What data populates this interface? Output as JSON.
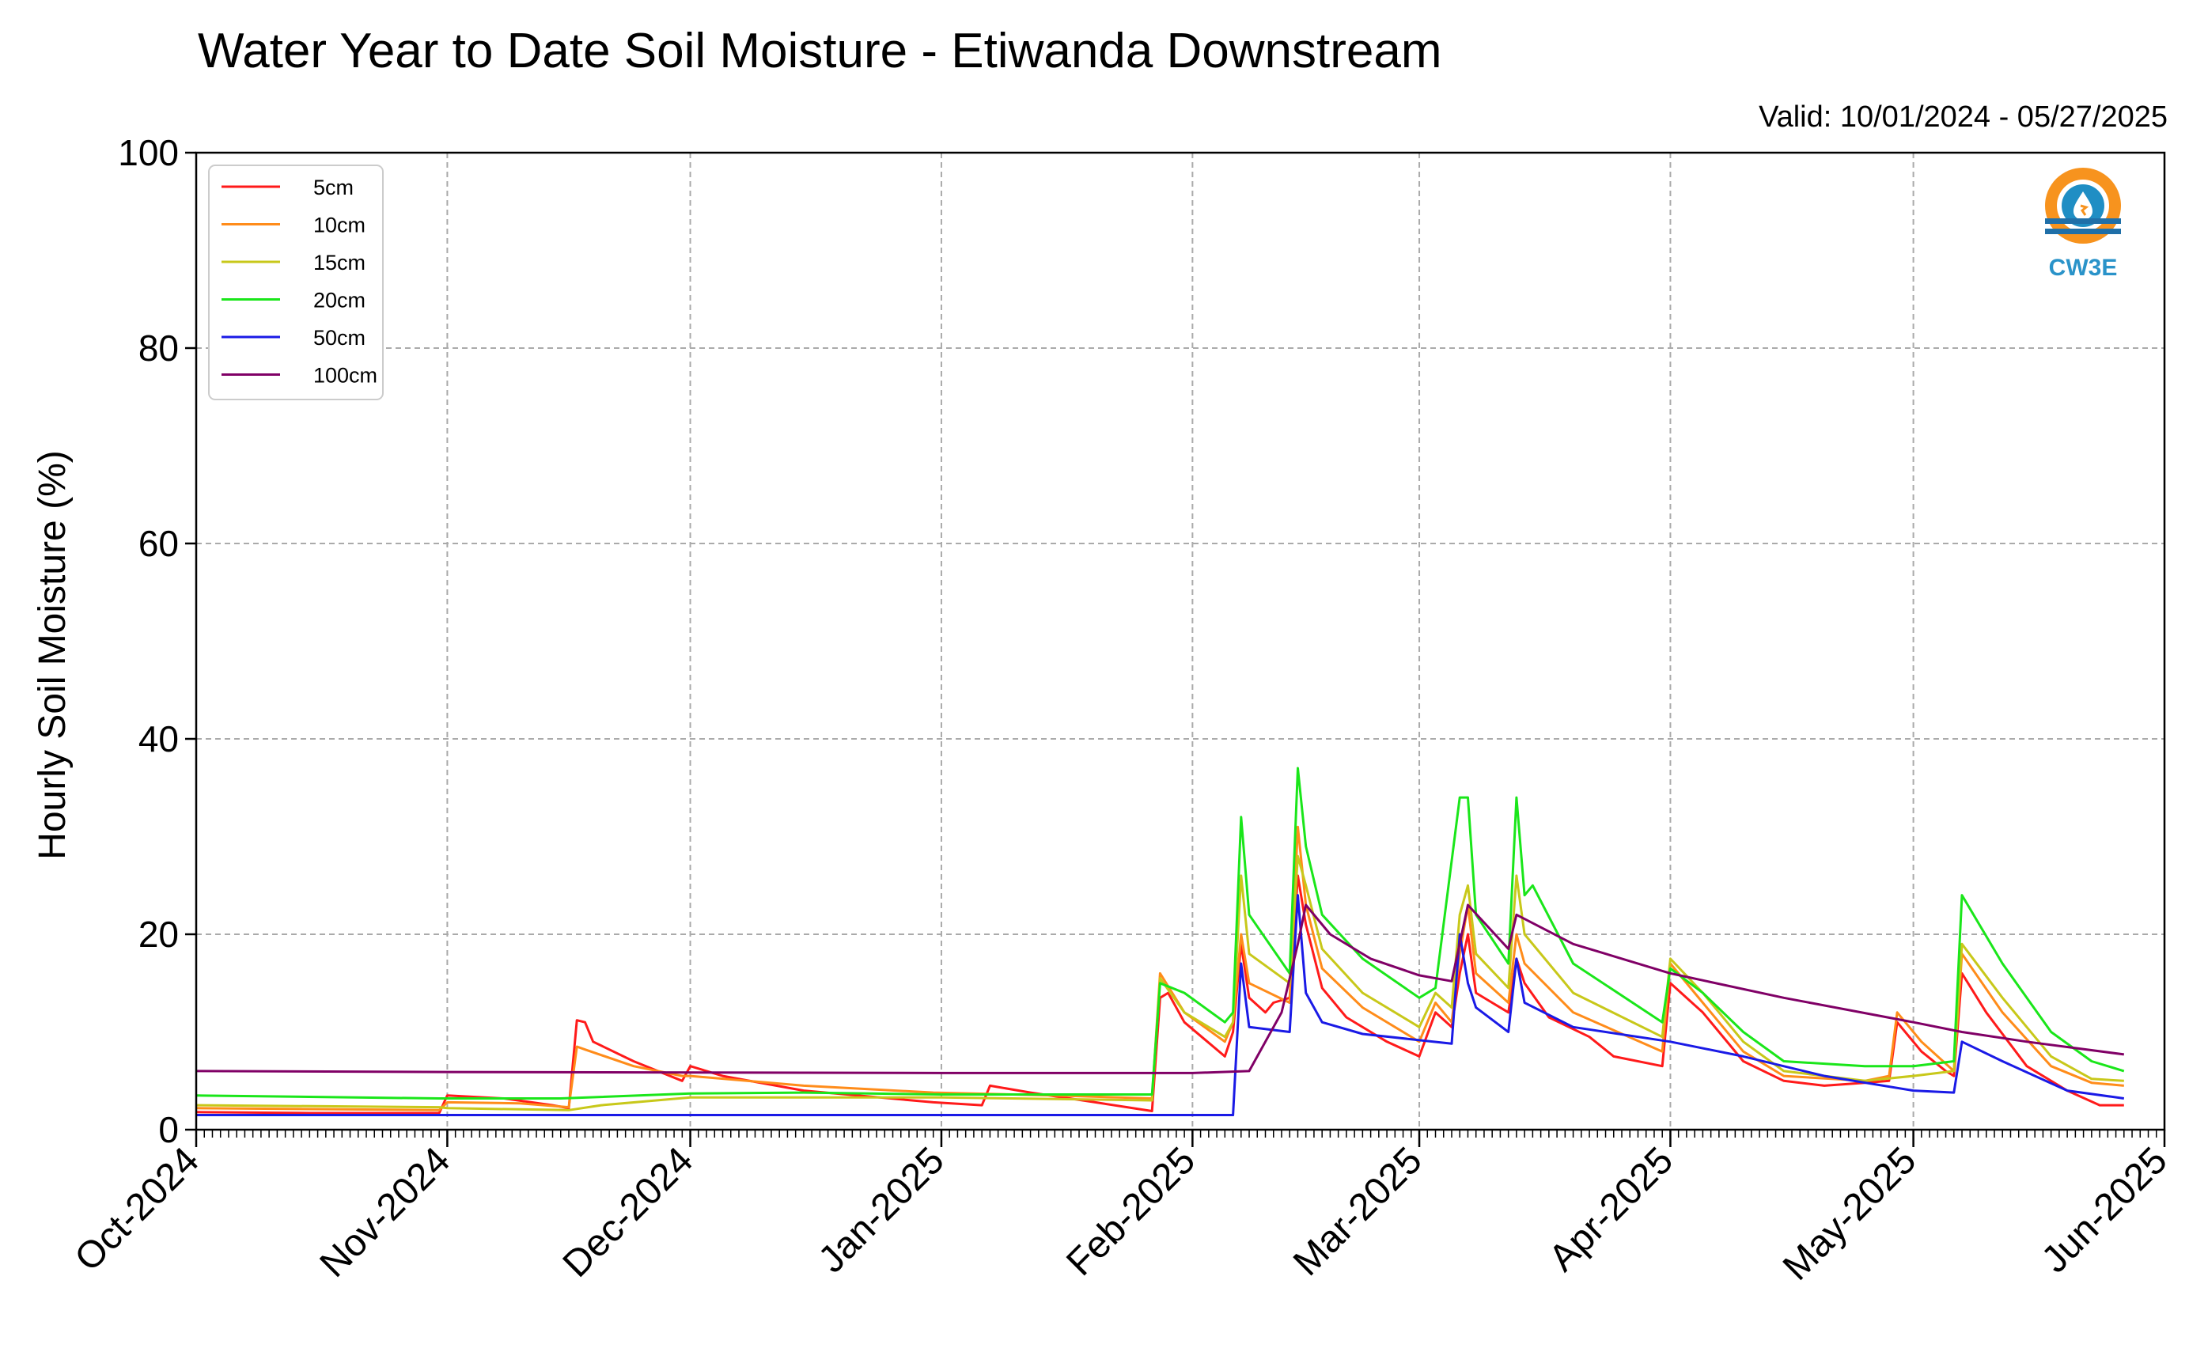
{
  "chart_data": {
    "type": "line",
    "title": "Water Year to Date Soil Moisture - Etiwanda Downstream",
    "subtitle": "Valid: 10/01/2024 - 05/27/2025",
    "xlabel": "",
    "ylabel": "Hourly Soil Moisture (%)",
    "ylim": [
      0,
      100
    ],
    "yticks": [
      0,
      20,
      40,
      60,
      80,
      100
    ],
    "xlim": [
      "2024-10-01",
      "2025-06-01"
    ],
    "xticks": [
      {
        "date": "2024-10-01",
        "label": "Oct-2024"
      },
      {
        "date": "2024-11-01",
        "label": "Nov-2024"
      },
      {
        "date": "2024-12-01",
        "label": "Dec-2024"
      },
      {
        "date": "2025-01-01",
        "label": "Jan-2025"
      },
      {
        "date": "2025-02-01",
        "label": "Feb-2025"
      },
      {
        "date": "2025-03-01",
        "label": "Mar-2025"
      },
      {
        "date": "2025-04-01",
        "label": "Apr-2025"
      },
      {
        "date": "2025-05-01",
        "label": "May-2025"
      },
      {
        "date": "2025-06-01",
        "label": "Jun-2025"
      }
    ],
    "grid": true,
    "legend_position": "top-left",
    "logo_text": "CW3E",
    "series": [
      {
        "name": "5cm",
        "color": "#ff1a1a",
        "points": [
          [
            "2024-10-01",
            1.8
          ],
          [
            "2024-10-15",
            1.7
          ],
          [
            "2024-10-31",
            1.7
          ],
          [
            "2024-11-01",
            3.5
          ],
          [
            "2024-11-08",
            3.2
          ],
          [
            "2024-11-14",
            2.5
          ],
          [
            "2024-11-16",
            2.2
          ],
          [
            "2024-11-17",
            11.2
          ],
          [
            "2024-11-18",
            11.0
          ],
          [
            "2024-11-19",
            9.0
          ],
          [
            "2024-11-24",
            7.0
          ],
          [
            "2024-11-30",
            5.0
          ],
          [
            "2024-12-01",
            6.5
          ],
          [
            "2024-12-05",
            5.5
          ],
          [
            "2024-12-15",
            4.0
          ],
          [
            "2024-12-31",
            2.8
          ],
          [
            "2025-01-06",
            2.5
          ],
          [
            "2025-01-07",
            4.5
          ],
          [
            "2025-01-12",
            3.8
          ],
          [
            "2025-01-20",
            2.8
          ],
          [
            "2025-01-27",
            1.9
          ],
          [
            "2025-01-28",
            13.5
          ],
          [
            "2025-01-29",
            14.0
          ],
          [
            "2025-01-31",
            11.0
          ],
          [
            "2025-02-05",
            7.5
          ],
          [
            "2025-02-06",
            10.0
          ],
          [
            "2025-02-07",
            19.0
          ],
          [
            "2025-02-08",
            13.5
          ],
          [
            "2025-02-10",
            12.0
          ],
          [
            "2025-02-11",
            13.0
          ],
          [
            "2025-02-13",
            13.5
          ],
          [
            "2025-02-14",
            26.0
          ],
          [
            "2025-02-15",
            21.0
          ],
          [
            "2025-02-17",
            14.5
          ],
          [
            "2025-02-20",
            11.5
          ],
          [
            "2025-02-25",
            9.0
          ],
          [
            "2025-03-01",
            7.5
          ],
          [
            "2025-03-03",
            12.0
          ],
          [
            "2025-03-05",
            10.5
          ],
          [
            "2025-03-06",
            16.0
          ],
          [
            "2025-03-07",
            20.0
          ],
          [
            "2025-03-08",
            14.0
          ],
          [
            "2025-03-10",
            13.0
          ],
          [
            "2025-03-12",
            12.0
          ],
          [
            "2025-03-13",
            17.5
          ],
          [
            "2025-03-14",
            15.0
          ],
          [
            "2025-03-17",
            11.5
          ],
          [
            "2025-03-22",
            9.5
          ],
          [
            "2025-03-25",
            7.5
          ],
          [
            "2025-03-31",
            6.5
          ],
          [
            "2025-04-01",
            15.0
          ],
          [
            "2025-04-05",
            12.0
          ],
          [
            "2025-04-10",
            7.0
          ],
          [
            "2025-04-15",
            5.0
          ],
          [
            "2025-04-20",
            4.5
          ],
          [
            "2025-04-25",
            4.8
          ],
          [
            "2025-04-28",
            5.0
          ],
          [
            "2025-04-29",
            11.0
          ],
          [
            "2025-05-02",
            8.0
          ],
          [
            "2025-05-05",
            6.0
          ],
          [
            "2025-05-06",
            5.5
          ],
          [
            "2025-05-07",
            16.0
          ],
          [
            "2025-05-10",
            12.0
          ],
          [
            "2025-05-15",
            6.5
          ],
          [
            "2025-05-20",
            4.0
          ],
          [
            "2025-05-24",
            2.5
          ],
          [
            "2025-05-27",
            2.5
          ]
        ]
      },
      {
        "name": "10cm",
        "color": "#ff8c1a",
        "points": [
          [
            "2024-10-01",
            2.2
          ],
          [
            "2024-10-31",
            2.0
          ],
          [
            "2024-11-01",
            2.8
          ],
          [
            "2024-11-10",
            2.7
          ],
          [
            "2024-11-16",
            2.3
          ],
          [
            "2024-11-17",
            8.5
          ],
          [
            "2024-11-18",
            8.2
          ],
          [
            "2024-11-24",
            6.5
          ],
          [
            "2024-11-30",
            5.5
          ],
          [
            "2024-12-01",
            5.5
          ],
          [
            "2024-12-15",
            4.5
          ],
          [
            "2024-12-31",
            3.8
          ],
          [
            "2025-01-15",
            3.5
          ],
          [
            "2025-01-27",
            3.2
          ],
          [
            "2025-01-28",
            16.0
          ],
          [
            "2025-01-31",
            12.0
          ],
          [
            "2025-02-05",
            9.0
          ],
          [
            "2025-02-06",
            11.0
          ],
          [
            "2025-02-07",
            20.0
          ],
          [
            "2025-02-08",
            15.0
          ],
          [
            "2025-02-13",
            13.0
          ],
          [
            "2025-02-14",
            31.0
          ],
          [
            "2025-02-15",
            23.0
          ],
          [
            "2025-02-17",
            16.5
          ],
          [
            "2025-02-22",
            12.5
          ],
          [
            "2025-03-01",
            9.0
          ],
          [
            "2025-03-03",
            13.0
          ],
          [
            "2025-03-05",
            11.0
          ],
          [
            "2025-03-06",
            18.0
          ],
          [
            "2025-03-07",
            23.0
          ],
          [
            "2025-03-08",
            16.0
          ],
          [
            "2025-03-12",
            13.0
          ],
          [
            "2025-03-13",
            20.0
          ],
          [
            "2025-03-14",
            17.0
          ],
          [
            "2025-03-20",
            12.0
          ],
          [
            "2025-03-31",
            8.0
          ],
          [
            "2025-04-01",
            17.0
          ],
          [
            "2025-04-05",
            13.0
          ],
          [
            "2025-04-10",
            8.0
          ],
          [
            "2025-04-15",
            5.5
          ],
          [
            "2025-04-25",
            5.0
          ],
          [
            "2025-04-28",
            5.5
          ],
          [
            "2025-04-29",
            12.0
          ],
          [
            "2025-05-02",
            9.0
          ],
          [
            "2025-05-06",
            6.0
          ],
          [
            "2025-05-07",
            18.0
          ],
          [
            "2025-05-12",
            12.0
          ],
          [
            "2025-05-18",
            6.5
          ],
          [
            "2025-05-23",
            4.8
          ],
          [
            "2025-05-27",
            4.5
          ]
        ]
      },
      {
        "name": "15cm",
        "color": "#c8c81a",
        "points": [
          [
            "2024-10-01",
            2.5
          ],
          [
            "2024-10-31",
            2.3
          ],
          [
            "2024-11-01",
            2.2
          ],
          [
            "2024-11-16",
            2.0
          ],
          [
            "2024-11-20",
            2.5
          ],
          [
            "2024-12-01",
            3.3
          ],
          [
            "2024-12-15",
            3.3
          ],
          [
            "2025-01-01",
            3.3
          ],
          [
            "2025-01-27",
            3.0
          ],
          [
            "2025-01-28",
            15.5
          ],
          [
            "2025-01-31",
            12.0
          ],
          [
            "2025-02-05",
            9.5
          ],
          [
            "2025-02-06",
            11.0
          ],
          [
            "2025-02-07",
            26.0
          ],
          [
            "2025-02-08",
            18.0
          ],
          [
            "2025-02-13",
            15.0
          ],
          [
            "2025-02-14",
            28.0
          ],
          [
            "2025-02-15",
            25.0
          ],
          [
            "2025-02-17",
            18.5
          ],
          [
            "2025-02-22",
            14.0
          ],
          [
            "2025-03-01",
            10.5
          ],
          [
            "2025-03-03",
            14.0
          ],
          [
            "2025-03-05",
            12.5
          ],
          [
            "2025-03-06",
            22.0
          ],
          [
            "2025-03-07",
            25.0
          ],
          [
            "2025-03-08",
            18.0
          ],
          [
            "2025-03-12",
            14.5
          ],
          [
            "2025-03-13",
            26.0
          ],
          [
            "2025-03-14",
            20.0
          ],
          [
            "2025-03-20",
            14.0
          ],
          [
            "2025-03-31",
            9.5
          ],
          [
            "2025-04-01",
            17.5
          ],
          [
            "2025-04-05",
            14.0
          ],
          [
            "2025-04-10",
            9.0
          ],
          [
            "2025-04-15",
            6.0
          ],
          [
            "2025-04-25",
            5.0
          ],
          [
            "2025-05-01",
            5.5
          ],
          [
            "2025-05-06",
            6.0
          ],
          [
            "2025-05-07",
            19.0
          ],
          [
            "2025-05-12",
            13.5
          ],
          [
            "2025-05-18",
            7.5
          ],
          [
            "2025-05-23",
            5.2
          ],
          [
            "2025-05-27",
            5.0
          ]
        ]
      },
      {
        "name": "20cm",
        "color": "#1ae61a",
        "points": [
          [
            "2024-10-01",
            3.5
          ],
          [
            "2024-10-31",
            3.2
          ],
          [
            "2024-11-15",
            3.2
          ],
          [
            "2024-12-01",
            3.7
          ],
          [
            "2024-12-15",
            3.8
          ],
          [
            "2025-01-01",
            3.6
          ],
          [
            "2025-01-27",
            3.6
          ],
          [
            "2025-01-28",
            15.0
          ],
          [
            "2025-01-31",
            14.0
          ],
          [
            "2025-02-05",
            11.0
          ],
          [
            "2025-02-06",
            12.0
          ],
          [
            "2025-02-07",
            32.0
          ],
          [
            "2025-02-08",
            22.0
          ],
          [
            "2025-02-13",
            16.0
          ],
          [
            "2025-02-14",
            37.0
          ],
          [
            "2025-02-15",
            29.0
          ],
          [
            "2025-02-17",
            22.0
          ],
          [
            "2025-02-22",
            17.5
          ],
          [
            "2025-03-01",
            13.5
          ],
          [
            "2025-03-03",
            14.5
          ],
          [
            "2025-03-06",
            34.0
          ],
          [
            "2025-03-07",
            34.0
          ],
          [
            "2025-03-08",
            22.0
          ],
          [
            "2025-03-12",
            17.0
          ],
          [
            "2025-03-13",
            34.0
          ],
          [
            "2025-03-14",
            24.0
          ],
          [
            "2025-03-15",
            25.0
          ],
          [
            "2025-03-20",
            17.0
          ],
          [
            "2025-03-31",
            11.0
          ],
          [
            "2025-04-01",
            16.5
          ],
          [
            "2025-04-05",
            14.0
          ],
          [
            "2025-04-10",
            10.0
          ],
          [
            "2025-04-15",
            7.0
          ],
          [
            "2025-04-25",
            6.5
          ],
          [
            "2025-05-01",
            6.5
          ],
          [
            "2025-05-06",
            7.0
          ],
          [
            "2025-05-07",
            24.0
          ],
          [
            "2025-05-12",
            17.0
          ],
          [
            "2025-05-18",
            10.0
          ],
          [
            "2025-05-23",
            7.0
          ],
          [
            "2025-05-27",
            6.0
          ]
        ]
      },
      {
        "name": "50cm",
        "color": "#1a1ae6",
        "points": [
          [
            "2024-10-01",
            1.5
          ],
          [
            "2024-11-01",
            1.5
          ],
          [
            "2025-02-06",
            1.5
          ],
          [
            "2025-02-07",
            17.0
          ],
          [
            "2025-02-08",
            10.5
          ],
          [
            "2025-02-13",
            10.0
          ],
          [
            "2025-02-14",
            24.0
          ],
          [
            "2025-02-15",
            14.0
          ],
          [
            "2025-02-17",
            11.0
          ],
          [
            "2025-02-22",
            9.8
          ],
          [
            "2025-03-05",
            8.8
          ],
          [
            "2025-03-06",
            20.0
          ],
          [
            "2025-03-07",
            15.0
          ],
          [
            "2025-03-08",
            12.5
          ],
          [
            "2025-03-12",
            10.0
          ],
          [
            "2025-03-13",
            17.5
          ],
          [
            "2025-03-14",
            13.0
          ],
          [
            "2025-03-20",
            10.5
          ],
          [
            "2025-04-01",
            9.0
          ],
          [
            "2025-04-10",
            7.5
          ],
          [
            "2025-04-20",
            5.5
          ],
          [
            "2025-05-01",
            4.0
          ],
          [
            "2025-05-06",
            3.8
          ],
          [
            "2025-05-07",
            9.0
          ],
          [
            "2025-05-12",
            7.0
          ],
          [
            "2025-05-20",
            4.0
          ],
          [
            "2025-05-27",
            3.2
          ]
        ]
      },
      {
        "name": "100cm",
        "color": "#800066",
        "points": [
          [
            "2024-10-01",
            6.0
          ],
          [
            "2024-11-01",
            5.9
          ],
          [
            "2025-01-01",
            5.8
          ],
          [
            "2025-02-01",
            5.8
          ],
          [
            "2025-02-08",
            6.0
          ],
          [
            "2025-02-10",
            9.0
          ],
          [
            "2025-02-12",
            12.0
          ],
          [
            "2025-02-14",
            19.0
          ],
          [
            "2025-02-15",
            23.0
          ],
          [
            "2025-02-18",
            20.0
          ],
          [
            "2025-02-23",
            17.5
          ],
          [
            "2025-03-01",
            15.8
          ],
          [
            "2025-03-05",
            15.2
          ],
          [
            "2025-03-07",
            23.0
          ],
          [
            "2025-03-12",
            18.5
          ],
          [
            "2025-03-13",
            22.0
          ],
          [
            "2025-03-20",
            19.0
          ],
          [
            "2025-04-01",
            16.0
          ],
          [
            "2025-04-15",
            13.5
          ],
          [
            "2025-05-01",
            11.0
          ],
          [
            "2025-05-07",
            10.0
          ],
          [
            "2025-05-15",
            9.0
          ],
          [
            "2025-05-27",
            7.7
          ]
        ]
      }
    ]
  }
}
